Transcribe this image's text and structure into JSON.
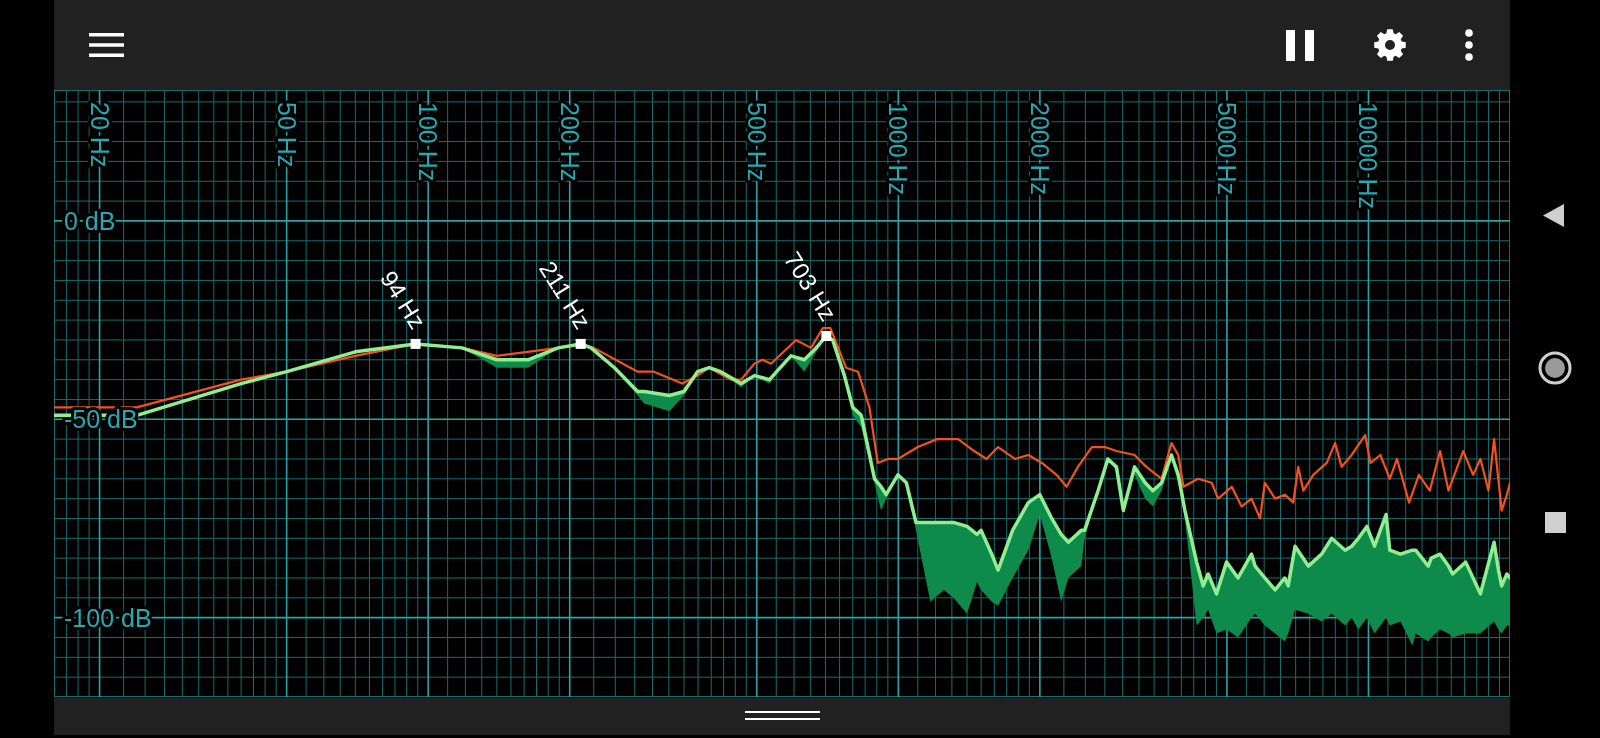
{
  "chart_data": {
    "type": "line",
    "log": "x",
    "grid": true,
    "xlim": [
      16,
      20000
    ],
    "xticks": [
      {
        "value": 17,
        "label": null
      },
      {
        "value": 18,
        "label": null
      },
      {
        "value": 19,
        "label": null
      },
      {
        "value": 20,
        "label": "20 Hz"
      },
      {
        "value": 22.5,
        "label": null
      },
      {
        "value": 25,
        "label": null
      },
      {
        "value": 27.5,
        "label": null
      },
      {
        "value": 30,
        "label": null
      },
      {
        "value": 32.5,
        "label": null
      },
      {
        "value": 35,
        "label": null
      },
      {
        "value": 37.5,
        "label": null
      },
      {
        "value": 40,
        "label": null
      },
      {
        "value": 42.5,
        "label": null
      },
      {
        "value": 45,
        "label": null
      },
      {
        "value": 47.5,
        "label": null
      },
      {
        "value": 50,
        "label": "50 Hz"
      },
      {
        "value": 55,
        "label": null
      },
      {
        "value": 60,
        "label": null
      },
      {
        "value": 65,
        "label": null
      },
      {
        "value": 70,
        "label": null
      },
      {
        "value": 75,
        "label": null
      },
      {
        "value": 80,
        "label": null
      },
      {
        "value": 85,
        "label": null
      },
      {
        "value": 90,
        "label": null
      },
      {
        "value": 95,
        "label": null
      },
      {
        "value": 100,
        "label": "100 Hz"
      },
      {
        "value": 110,
        "label": null
      },
      {
        "value": 120,
        "label": null
      },
      {
        "value": 130,
        "label": null
      },
      {
        "value": 140,
        "label": null
      },
      {
        "value": 150,
        "label": null
      },
      {
        "value": 160,
        "label": null
      },
      {
        "value": 170,
        "label": null
      },
      {
        "value": 180,
        "label": null
      },
      {
        "value": 190,
        "label": null
      },
      {
        "value": 200,
        "label": "200 Hz"
      },
      {
        "value": 225,
        "label": null
      },
      {
        "value": 250,
        "label": null
      },
      {
        "value": 275,
        "label": null
      },
      {
        "value": 300,
        "label": null
      },
      {
        "value": 325,
        "label": null
      },
      {
        "value": 350,
        "label": null
      },
      {
        "value": 375,
        "label": null
      },
      {
        "value": 400,
        "label": null
      },
      {
        "value": 425,
        "label": null
      },
      {
        "value": 450,
        "label": null
      },
      {
        "value": 475,
        "label": null
      },
      {
        "value": 500,
        "label": "500 Hz"
      },
      {
        "value": 550,
        "label": null
      },
      {
        "value": 600,
        "label": null
      },
      {
        "value": 650,
        "label": null
      },
      {
        "value": 700,
        "label": null
      },
      {
        "value": 750,
        "label": null
      },
      {
        "value": 800,
        "label": null
      },
      {
        "value": 850,
        "label": null
      },
      {
        "value": 900,
        "label": null
      },
      {
        "value": 950,
        "label": null
      },
      {
        "value": 1000,
        "label": "1000 Hz"
      },
      {
        "value": 1100,
        "label": null
      },
      {
        "value": 1200,
        "label": null
      },
      {
        "value": 1300,
        "label": null
      },
      {
        "value": 1400,
        "label": null
      },
      {
        "value": 1500,
        "label": null
      },
      {
        "value": 1600,
        "label": null
      },
      {
        "value": 1700,
        "label": null
      },
      {
        "value": 1800,
        "label": null
      },
      {
        "value": 1900,
        "label": null
      },
      {
        "value": 2000,
        "label": "2000 Hz"
      },
      {
        "value": 2250,
        "label": null
      },
      {
        "value": 2500,
        "label": null
      },
      {
        "value": 2750,
        "label": null
      },
      {
        "value": 3000,
        "label": null
      },
      {
        "value": 3250,
        "label": null
      },
      {
        "value": 3500,
        "label": null
      },
      {
        "value": 3750,
        "label": null
      },
      {
        "value": 4000,
        "label": null
      },
      {
        "value": 4250,
        "label": null
      },
      {
        "value": 4500,
        "label": null
      },
      {
        "value": 4750,
        "label": null
      },
      {
        "value": 5000,
        "label": "5000 Hz"
      },
      {
        "value": 5500,
        "label": null
      },
      {
        "value": 6000,
        "label": null
      },
      {
        "value": 6500,
        "label": null
      },
      {
        "value": 7000,
        "label": null
      },
      {
        "value": 7500,
        "label": null
      },
      {
        "value": 8000,
        "label": null
      },
      {
        "value": 8500,
        "label": null
      },
      {
        "value": 9000,
        "label": null
      },
      {
        "value": 9500,
        "label": null
      },
      {
        "value": 10000,
        "label": "10000 Hz"
      },
      {
        "value": 11000,
        "label": null
      },
      {
        "value": 12000,
        "label": null
      },
      {
        "value": 13000,
        "label": null
      },
      {
        "value": 14000,
        "label": null
      },
      {
        "value": 15000,
        "label": null
      },
      {
        "value": 16000,
        "label": null
      },
      {
        "value": 17000,
        "label": null
      },
      {
        "value": 18000,
        "label": null
      },
      {
        "value": 19000,
        "label": null
      }
    ],
    "ylim": [
      -120,
      33
    ],
    "yticks": [
      {
        "value": 30,
        "label": null
      },
      {
        "value": 25,
        "label": null
      },
      {
        "value": 20,
        "label": null
      },
      {
        "value": 15,
        "label": null
      },
      {
        "value": 10,
        "label": null
      },
      {
        "value": 5,
        "label": null
      },
      {
        "value": 0,
        "label": "0 dB"
      },
      {
        "value": -5,
        "label": null
      },
      {
        "value": -10,
        "label": null
      },
      {
        "value": -15,
        "label": null
      },
      {
        "value": -20,
        "label": null
      },
      {
        "value": -25,
        "label": null
      },
      {
        "value": -30,
        "label": null
      },
      {
        "value": -35,
        "label": null
      },
      {
        "value": -40,
        "label": null
      },
      {
        "value": -45,
        "label": null
      },
      {
        "value": -50,
        "label": "-50 dB"
      },
      {
        "value": -55,
        "label": null
      },
      {
        "value": -60,
        "label": null
      },
      {
        "value": -65,
        "label": null
      },
      {
        "value": -70,
        "label": null
      },
      {
        "value": -75,
        "label": null
      },
      {
        "value": -80,
        "label": null
      },
      {
        "value": -85,
        "label": null
      },
      {
        "value": -90,
        "label": null
      },
      {
        "value": -95,
        "label": null
      },
      {
        "value": -100,
        "label": "-100 dB"
      },
      {
        "value": -105,
        "label": null
      },
      {
        "value": -110,
        "label": null
      },
      {
        "value": -115,
        "label": null
      }
    ],
    "series": [
      {
        "color": "#f4511e",
        "x": [
          16,
          24,
          40,
          50,
          70,
          94,
          118,
          140,
          163,
          189,
          211,
          225,
          279,
          302,
          347,
          374,
          396,
          440,
          463,
          494,
          514,
          536,
          606,
          652,
          691,
          717,
          774,
          821,
          868,
          904,
          950,
          998,
          1100,
          1210,
          1340,
          1450,
          1540,
          1630,
          1770,
          1890,
          2020,
          2170,
          2280,
          2410,
          2580,
          2750,
          2910,
          3180,
          3370,
          3630,
          3810,
          3940,
          4040,
          4340,
          4640,
          4790,
          5120,
          5370,
          5640,
          5880,
          6020,
          6330,
          6640,
          6920,
          7090,
          7270,
          7630,
          8150,
          8490,
          8770,
          9210,
          9840,
          10100,
          10600,
          11100,
          11500,
          12200,
          12800,
          13500,
          14200,
          14800,
          15900,
          16700,
          17300,
          18000,
          18500,
          19200,
          19700,
          20000
        ],
        "values": [
          -47,
          -47,
          -40,
          -38,
          -34,
          -31,
          -32,
          -34,
          -33,
          -32,
          -31,
          -32,
          -38,
          -38,
          -41,
          -39,
          -37,
          -40,
          -40,
          -36,
          -35,
          -36,
          -30,
          -32,
          -27,
          -27,
          -37,
          -38,
          -47,
          -61,
          -60,
          -60,
          -57,
          -55,
          -55,
          -58,
          -60,
          -57,
          -60,
          -59,
          -61,
          -64,
          -67,
          -62,
          -57,
          -57,
          -58,
          -59,
          -62,
          -65,
          -56,
          -59,
          -67,
          -65,
          -66,
          -70,
          -67,
          -72,
          -70,
          -75,
          -66,
          -70,
          -69,
          -71,
          -62,
          -68,
          -64,
          -61,
          -56,
          -62,
          -59,
          -54,
          -61,
          -59,
          -65,
          -60,
          -71,
          -64,
          -68,
          -58,
          -68,
          -58,
          -64,
          -60,
          -68,
          -55,
          -73,
          -69,
          -66
        ]
      },
      {
        "color": "#90ee90",
        "x": [
          16,
          24,
          40,
          50,
          70,
          94,
          118,
          140,
          163,
          189,
          211,
          222,
          249,
          279,
          288,
          326,
          350,
          374,
          396,
          419,
          463,
          494,
          532,
          591,
          631,
          669,
          703,
          725,
          768,
          800,
          834,
          890,
          919,
          942,
          998,
          1040,
          1090,
          1170,
          1250,
          1310,
          1400,
          1470,
          1500,
          1580,
          1630,
          1750,
          1890,
          2000,
          2120,
          2220,
          2300,
          2450,
          2490,
          2660,
          2790,
          2910,
          3010,
          3180,
          3350,
          3480,
          3630,
          3810,
          3940,
          4070,
          4310,
          4450,
          4560,
          4750,
          4990,
          5280,
          5640,
          5740,
          6020,
          6330,
          6640,
          6750,
          6980,
          7450,
          7950,
          8350,
          8920,
          9210,
          9520,
          9920,
          10300,
          10900,
          11100,
          11700,
          12400,
          12600,
          13400,
          13600,
          14200,
          14800,
          15100,
          16100,
          17300,
          18500,
          18900,
          19200,
          19700,
          20000
        ],
        "values": [
          -49,
          -49,
          -41,
          -38,
          -33,
          -31,
          -32,
          -35,
          -35,
          -32,
          -31,
          -32,
          -37,
          -43,
          -43,
          -44,
          -43,
          -38,
          -37,
          -38,
          -41,
          -39,
          -40,
          -34,
          -35,
          -32,
          -29,
          -30,
          -39,
          -47,
          -49,
          -65,
          -67,
          -69,
          -64,
          -66,
          -76,
          -76,
          -76,
          -76,
          -77,
          -79,
          -78,
          -84,
          -88,
          -78,
          -71,
          -69,
          -75,
          -79,
          -81,
          -78,
          -78,
          -68,
          -60,
          -62,
          -73,
          -62,
          -66,
          -68,
          -66,
          -59,
          -64,
          -73,
          -86,
          -92,
          -89,
          -94,
          -86,
          -90,
          -84,
          -87,
          -90,
          -93,
          -90,
          -92,
          -82,
          -87,
          -84,
          -80,
          -83,
          -82,
          -80,
          -77,
          -82,
          -74,
          -83,
          -84,
          -83,
          -83,
          -87,
          -85,
          -84,
          -87,
          -89,
          -86,
          -94,
          -81,
          -88,
          -92,
          -89,
          -90
        ],
        "lower": [
          null,
          null,
          null,
          null,
          null,
          null,
          -32,
          -37,
          -37,
          -32,
          null,
          null,
          -37,
          -44,
          -46,
          -48,
          -44,
          -38,
          null,
          -38,
          -42,
          -39,
          -41,
          -34,
          -38,
          -33,
          -29,
          -30,
          -40,
          -49,
          -52,
          -66,
          -73,
          -70,
          -64,
          -66,
          -78,
          -96,
          -93,
          -95,
          -99,
          -91,
          -93,
          -96,
          -97,
          -90,
          -83,
          -74,
          -85,
          -96,
          -90,
          -87,
          -80,
          -68,
          -60,
          -63,
          -73,
          -64,
          -70,
          -72,
          -68,
          -60,
          -66,
          -75,
          -102,
          -100,
          -98,
          -104,
          -103,
          -105,
          -100,
          -99,
          -102,
          -104,
          -106,
          -104,
          -98,
          -99,
          -101,
          -99,
          -102,
          -100,
          -103,
          -100,
          -104,
          -100,
          -102,
          -101,
          -107,
          -104,
          -106,
          -105,
          -103,
          -104,
          -105,
          -104,
          -104,
          -101,
          -103,
          -104,
          -102,
          -102
        ],
        "upper": [
          null,
          null,
          null,
          null,
          null,
          null,
          -32,
          -35,
          -35,
          -32,
          null,
          null,
          -37,
          -43,
          -43,
          -44,
          -43,
          -38,
          null,
          -38,
          -41,
          -39,
          -40,
          -34,
          -35,
          -32,
          -29,
          -30,
          -39,
          -47,
          -49,
          -65,
          -67,
          -69,
          -64,
          -66,
          -76,
          -76,
          -76,
          -76,
          -77,
          -79,
          -78,
          -84,
          -88,
          -78,
          -71,
          -69,
          -75,
          -79,
          -81,
          -78,
          -78,
          -68,
          -60,
          -62,
          -73,
          -62,
          -66,
          -68,
          -66,
          -59,
          -64,
          -73,
          -86,
          -92,
          -89,
          -94,
          -86,
          -90,
          -84,
          -87,
          -90,
          -93,
          -90,
          -92,
          -82,
          -87,
          -84,
          -80,
          -83,
          -82,
          -80,
          -77,
          -82,
          -74,
          -83,
          -84,
          -83,
          -83,
          -87,
          -85,
          -84,
          -87,
          -89,
          -86,
          -94,
          -81,
          -88,
          -92,
          -89,
          -90
        ]
      }
    ],
    "annotations": [
      {
        "text": "94 Hz",
        "x": 94,
        "y": -31
      },
      {
        "text": "211 Hz",
        "x": 211,
        "y": -31
      },
      {
        "text": "703 Hz",
        "x": 703,
        "y": -29
      }
    ]
  }
}
